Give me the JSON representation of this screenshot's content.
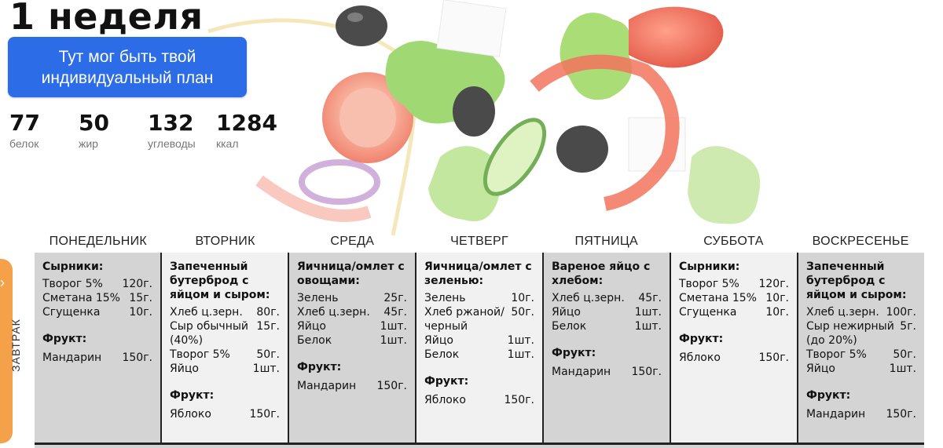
{
  "page": {
    "week_title": "1 неделя",
    "plan_button": "Тут мог быть твой индивидуальный план"
  },
  "macros": [
    {
      "value": "77",
      "label": "белок"
    },
    {
      "value": "50",
      "label": "жир"
    },
    {
      "value": "132",
      "label": "углеводы"
    },
    {
      "value": "1284",
      "label": "ккал"
    }
  ],
  "days": [
    "ПОНЕДЕЛЬНИК",
    "ВТОРНИК",
    "СРЕДА",
    "ЧЕТВЕРГ",
    "ПЯТНИЦА",
    "СУББОТА",
    "ВОСКРЕСЕНЬЕ"
  ],
  "meal": {
    "label": "ЗАВТРАК",
    "chevron": "›",
    "icon": "chevron-right-icon"
  },
  "fruit_heading": "Фрукт:",
  "breakfast": [
    {
      "dish": "Сырники:",
      "items": [
        [
          "Творог 5%",
          "120г."
        ],
        [
          "Сметана 15%",
          "15г."
        ],
        [
          "Сгущенка",
          "10г."
        ]
      ],
      "fruit": [
        "Мандарин",
        "150г."
      ]
    },
    {
      "dish": "Запеченный бутерброд с яйцом и сыром:",
      "items": [
        [
          "Хлеб ц.зерн.",
          "80г."
        ],
        [
          "Сыр обычный (40%)",
          "15г."
        ],
        [
          "Творог 5%",
          "50г."
        ],
        [
          "Яйцо",
          "1шт."
        ]
      ],
      "fruit": [
        "Яблоко",
        "150г."
      ]
    },
    {
      "dish": "Яичница/омлет с овощами:",
      "items": [
        [
          "Зелень",
          "25г."
        ],
        [
          "Хлеб ц.зерн.",
          "45г."
        ],
        [
          "Яйцо",
          "1шт."
        ],
        [
          "Белок",
          "1шт."
        ]
      ],
      "fruit": [
        "Мандарин",
        "150г."
      ]
    },
    {
      "dish": "Яичница/омлет с зеленью:",
      "items": [
        [
          "Зелень",
          "10г."
        ],
        [
          "Хлеб ржаной/ черный",
          "50г."
        ],
        [
          "Яйцо",
          "1шт."
        ],
        [
          "Белок",
          "1шт."
        ]
      ],
      "fruit": [
        "Яблоко",
        "150г."
      ]
    },
    {
      "dish": "Вареное яйцо с хлебом:",
      "items": [
        [
          "Хлеб ц.зерн.",
          "45г."
        ],
        [
          "Яйцо",
          "1шт."
        ],
        [
          "Белок",
          "1шт."
        ]
      ],
      "fruit": [
        "Мандарин",
        "150г."
      ]
    },
    {
      "dish": "Сырники:",
      "items": [
        [
          "Творог 5%",
          "120г."
        ],
        [
          "Сметана 15%",
          "10г."
        ],
        [
          "Сгущенка",
          "10г."
        ]
      ],
      "fruit": [
        "Яблоко",
        "150г."
      ]
    },
    {
      "dish": "Запеченный бутерброд с яйцом и сыром:",
      "items": [
        [
          "Хлеб ц.зерн.",
          "100г."
        ],
        [
          "Сыр нежирный (до 20%)",
          "5г."
        ],
        [
          "Творог 5%",
          "50г."
        ],
        [
          "Яйцо",
          "1шт."
        ]
      ],
      "fruit": [
        "Мандарин",
        "150г."
      ]
    }
  ]
}
